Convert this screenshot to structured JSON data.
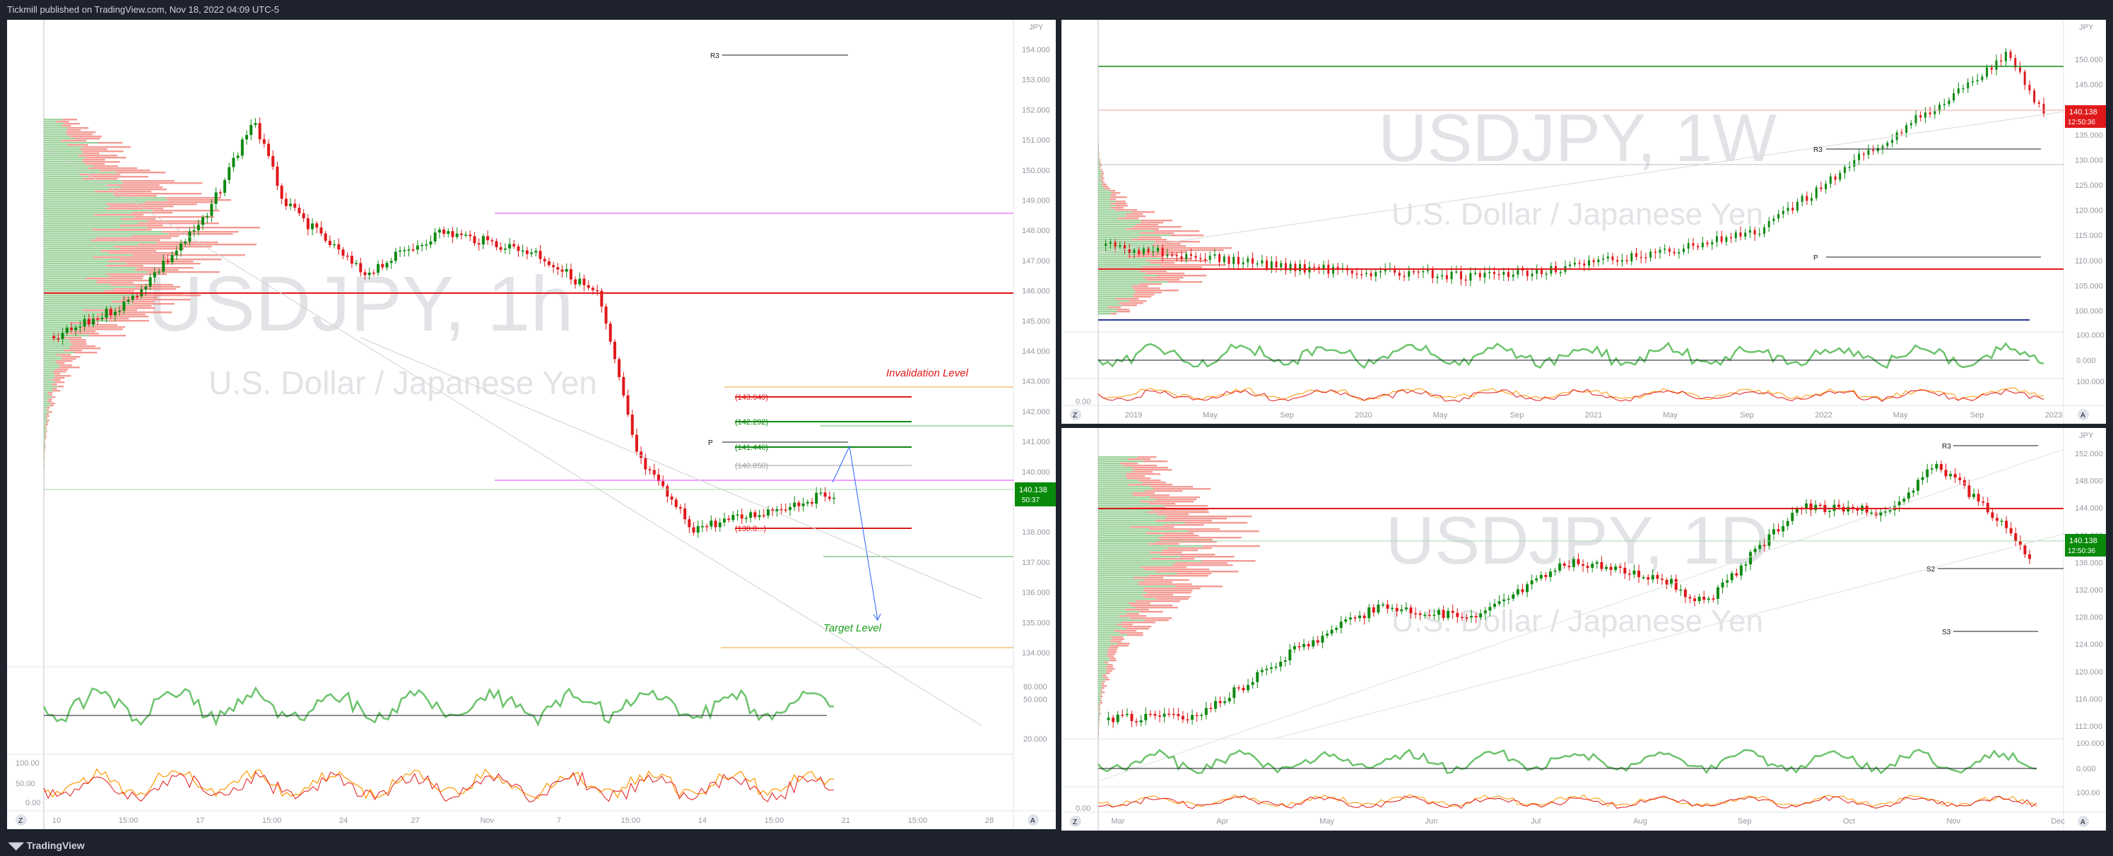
{
  "header": {
    "publisher": "Tickmill published on TradingView.com, Nov 18, 2022 04:09 UTC-5"
  },
  "footer": {
    "brand": "TradingView"
  },
  "colors": {
    "up": "#0f8a12",
    "down": "#e0191b",
    "bg": "#ffffff",
    "chrome": "#1e222d",
    "rsi": "#6cc36c",
    "rsi_low": "#f2766d",
    "price_badge_green": "#0a8a0a",
    "price_badge_red": "#e0191b"
  },
  "left": {
    "watermark_symbol": "USDJPY, 1h",
    "watermark_name": "U.S. Dollar / Japanese Yen",
    "currency": "JPY",
    "price_ticks": [
      "154.000",
      "153.000",
      "152.000",
      "151.000",
      "150.000",
      "149.000",
      "148.000",
      "147.000",
      "146.000",
      "145.000",
      "144.000",
      "143.000",
      "142.000",
      "141.000",
      "140.000",
      "139.000",
      "138.000",
      "137.000",
      "136.000",
      "135.000",
      "134.000"
    ],
    "time_ticks": [
      "10",
      "15:00",
      "17",
      "15:00",
      "24",
      "27",
      "Nov",
      "7",
      "15:00",
      "14",
      "15:00",
      "21",
      "15:00",
      "28"
    ],
    "levels": {
      "invalidation_label": "Invalidation Level",
      "target_label": "Target Level",
      "r3": "R3",
      "p": "P",
      "l1": "(143.040)",
      "l2": "(142.292)",
      "l3": "(141.446)",
      "l4": "(140.850)",
      "l5": "(138.8...)"
    },
    "price_badge": "140.138",
    "price_badge_time": "50:37",
    "rsi_ticks": [
      "80.000",
      "50.000",
      "20.000"
    ],
    "stoch_ticks": [
      "100.00",
      "50.00",
      "0.00"
    ],
    "axis_corner_left": "Z",
    "axis_corner_right": "A"
  },
  "right_top": {
    "watermark_symbol": "USDJPY, 1W",
    "watermark_name": "U.S. Dollar / Japanese Yen",
    "currency": "JPY",
    "price_ticks": [
      "150.000",
      "145.000",
      "140.000",
      "135.000",
      "130.000",
      "125.000",
      "120.000",
      "115.000",
      "110.000",
      "105.000",
      "100.000"
    ],
    "time_ticks": [
      "2019",
      "May",
      "Sep",
      "2020",
      "May",
      "Sep",
      "2021",
      "May",
      "Sep",
      "2022",
      "May",
      "Sep",
      "2023"
    ],
    "r3": "R3",
    "p": "P",
    "price_badge": "140.138",
    "price_badge_time": "12:50:36",
    "rsi_ticks": [
      "100.000",
      "0.000"
    ],
    "stoch_ticks": [
      "0.00"
    ],
    "osc_right_tick": "100.000",
    "axis_corner_left": "Z",
    "axis_corner_right": "A"
  },
  "right_bottom": {
    "watermark_symbol": "USDJPY, 1D",
    "watermark_name": "U.S. Dollar / Japanese Yen",
    "currency": "JPY",
    "price_ticks": [
      "152.000",
      "148.000",
      "144.000",
      "140.000",
      "136.000",
      "132.000",
      "128.000",
      "124.000",
      "120.000",
      "116.000",
      "112.000"
    ],
    "time_ticks": [
      "Mar",
      "Apr",
      "May",
      "Jun",
      "Jul",
      "Aug",
      "Sep",
      "Oct",
      "Nov",
      "Dec"
    ],
    "r3": "R3",
    "s2": "S2",
    "s3": "S3",
    "price_badge": "140.138",
    "price_badge_time": "12:50:36",
    "rsi_ticks": [
      "100.000",
      "0.000"
    ],
    "stoch_ticks": [
      "100.00",
      "0.00"
    ],
    "axis_corner_left": "Z",
    "axis_corner_right": "A"
  }
}
